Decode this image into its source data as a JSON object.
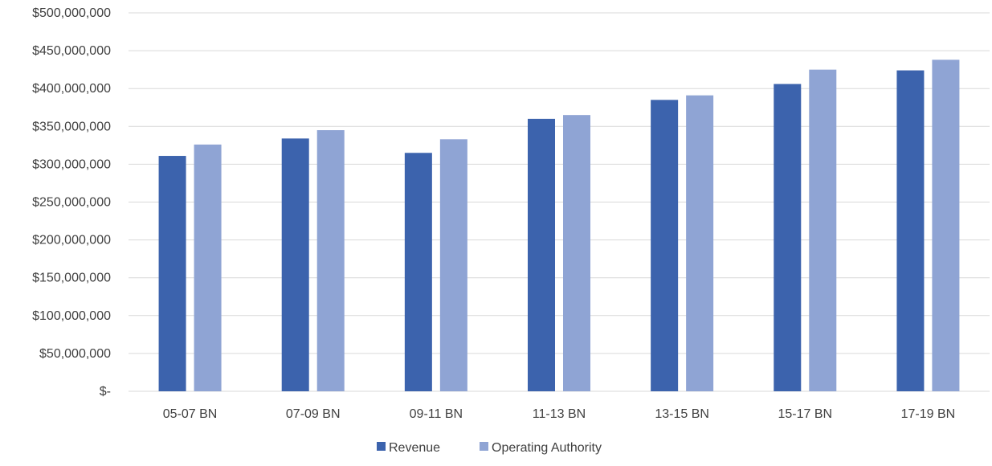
{
  "chart_data": {
    "type": "bar",
    "title": "",
    "xlabel": "",
    "ylabel": "",
    "categories": [
      "05-07 BN",
      "07-09 BN",
      "09-11 BN",
      "11-13 BN",
      "13-15 BN",
      "15-17 BN",
      "17-19 BN"
    ],
    "series": [
      {
        "name": "Revenue",
        "color": "#3c63ad",
        "values": [
          311000000,
          334000000,
          315000000,
          360000000,
          385000000,
          406000000,
          424000000
        ]
      },
      {
        "name": "Operating Authority",
        "color": "#8fa4d4",
        "values": [
          326000000,
          345000000,
          333000000,
          365000000,
          391000000,
          425000000,
          438000000
        ]
      }
    ],
    "ylim": [
      0,
      500000000
    ],
    "yticks": [
      0,
      50000000,
      100000000,
      150000000,
      200000000,
      250000000,
      300000000,
      350000000,
      400000000,
      450000000,
      500000000
    ],
    "ytick_labels": [
      "$-",
      "$50,000,000",
      "$100,000,000",
      "$150,000,000",
      "$200,000,000",
      "$250,000,000",
      "$300,000,000",
      "$350,000,000",
      "$400,000,000",
      "$450,000,000",
      "$500,000,000"
    ],
    "grid": true,
    "gridline_color": "#d9d9d9",
    "legend_position": "bottom-center"
  }
}
